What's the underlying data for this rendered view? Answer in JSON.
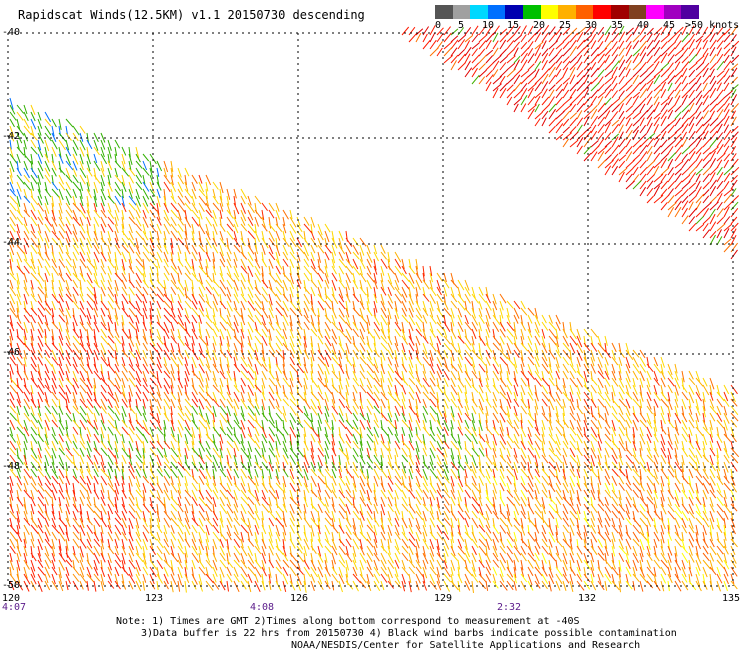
{
  "title": "Rapidscat Winds(12.5KM) v1.1 20150730 descending",
  "legend": {
    "colors": [
      "#555555",
      "#a0a0a0",
      "#00d8ff",
      "#0070ff",
      "#0000b0",
      "#00c000",
      "#ffff00",
      "#ffb000",
      "#ff6000",
      "#ff0000",
      "#a00000",
      "#804020",
      "#ff00ff",
      "#a000c0",
      "#5000a0"
    ],
    "labels": [
      "0",
      "5",
      "10",
      "15",
      "20",
      "25",
      "30",
      "35",
      "40",
      "45",
      ">50 knots"
    ]
  },
  "lat_labels": [
    "-40",
    "-42",
    "-44",
    "-46",
    "-48",
    "-50"
  ],
  "lon_labels": [
    "120",
    "123",
    "126",
    "129",
    "132",
    "135"
  ],
  "time_labels": [
    "4:07",
    "4:08",
    "2:32"
  ],
  "notes": {
    "line1": "Note: 1) Times are GMT 2)Times along bottom correspond to measurement at -40S",
    "line2": "3)Data buffer is 22 hrs from 20150730 4) Black wind barbs indicate possible contamination",
    "line3": "NOAA/NESDIS/Center for Satellite Applications and Research"
  }
}
